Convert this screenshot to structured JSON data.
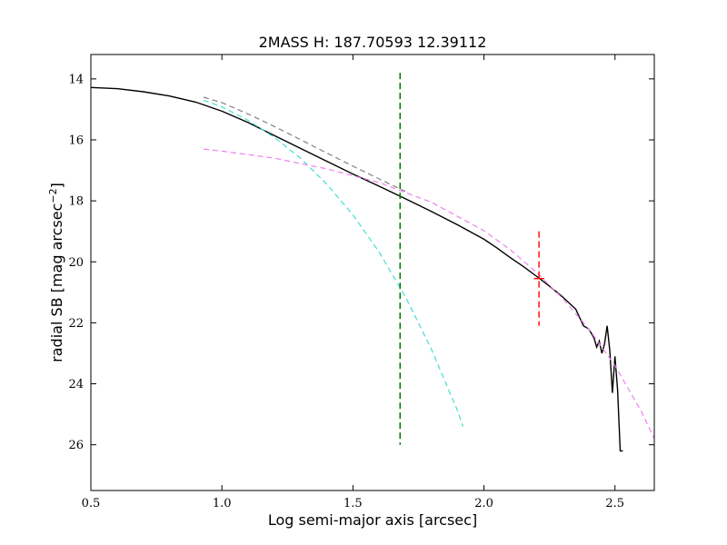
{
  "chart_data": {
    "type": "line",
    "title": "2MASS H: 187.70593 12.39112",
    "xlabel": "Log semi-major axis [arcsec]",
    "ylabel_main": "radial SB [mag arcsec",
    "ylabel_sup": "−2",
    "ylabel_close": "]",
    "xlim": [
      0.5,
      2.65
    ],
    "ylim": [
      27.5,
      13.2
    ],
    "y_inverted": true,
    "grid": false,
    "legend": "none",
    "x_ticks": [
      0.5,
      1.0,
      1.5,
      2.0,
      2.5
    ],
    "x_tick_labels": [
      "0.5",
      "1.0",
      "1.5",
      "2.0",
      "2.5"
    ],
    "y_ticks": [
      14,
      16,
      18,
      20,
      22,
      24,
      26
    ],
    "y_tick_labels": [
      "14",
      "16",
      "18",
      "20",
      "22",
      "24",
      "26"
    ],
    "series": [
      {
        "style": "solid",
        "color": "#000000",
        "x": [
          0.5,
          0.6,
          0.7,
          0.8,
          0.9,
          1.0,
          1.1,
          1.2,
          1.3,
          1.4,
          1.5,
          1.6,
          1.7,
          1.8,
          1.9,
          2.0,
          2.05,
          2.1,
          2.15,
          2.2,
          2.25,
          2.3,
          2.35,
          2.38,
          2.4,
          2.42,
          2.43,
          2.44,
          2.45,
          2.46,
          2.47,
          2.48,
          2.49,
          2.5,
          2.51,
          2.52,
          2.53
        ],
        "y": [
          14.28,
          14.32,
          14.42,
          14.56,
          14.76,
          15.06,
          15.43,
          15.86,
          16.28,
          16.7,
          17.12,
          17.52,
          17.93,
          18.35,
          18.79,
          19.26,
          19.55,
          19.86,
          20.15,
          20.47,
          20.8,
          21.15,
          21.55,
          22.1,
          22.2,
          22.5,
          22.8,
          22.6,
          23.0,
          22.7,
          22.1,
          22.9,
          24.3,
          23.1,
          24.2,
          26.2,
          26.2
        ]
      },
      {
        "style": "dashed",
        "color": "#808080",
        "x": [
          0.93,
          1.0,
          1.1,
          1.2,
          1.3,
          1.4,
          1.5,
          1.6,
          1.7
        ],
        "y": [
          14.6,
          14.78,
          15.15,
          15.56,
          15.99,
          16.43,
          16.86,
          17.28,
          17.69
        ]
      },
      {
        "style": "dashed",
        "color": "#40e0d0",
        "x": [
          0.93,
          1.0,
          1.1,
          1.2,
          1.3,
          1.4,
          1.5,
          1.6,
          1.7,
          1.8,
          1.9,
          1.92
        ],
        "y": [
          14.7,
          14.92,
          15.36,
          15.92,
          16.6,
          17.45,
          18.46,
          19.68,
          21.14,
          22.88,
          24.9,
          25.4
        ]
      },
      {
        "style": "dashed",
        "color": "#ee82ee",
        "x": [
          0.93,
          1.0,
          1.2,
          1.4,
          1.6,
          1.8,
          2.0,
          2.1,
          2.2,
          2.3,
          2.4,
          2.5,
          2.6,
          2.65
        ],
        "y": [
          16.3,
          16.37,
          16.6,
          16.95,
          17.4,
          18.05,
          18.98,
          19.6,
          20.34,
          21.2,
          22.2,
          23.4,
          24.9,
          25.8
        ]
      }
    ],
    "vertical_marker": {
      "x": 1.68,
      "y_range": [
        13.8,
        26.0
      ],
      "color": "#008000",
      "style": "dashed"
    },
    "error_marker": {
      "x": 2.21,
      "y": 20.55,
      "y_range": [
        19.0,
        22.1
      ],
      "x_half_width": 0.02,
      "color": "#ff0000"
    }
  }
}
